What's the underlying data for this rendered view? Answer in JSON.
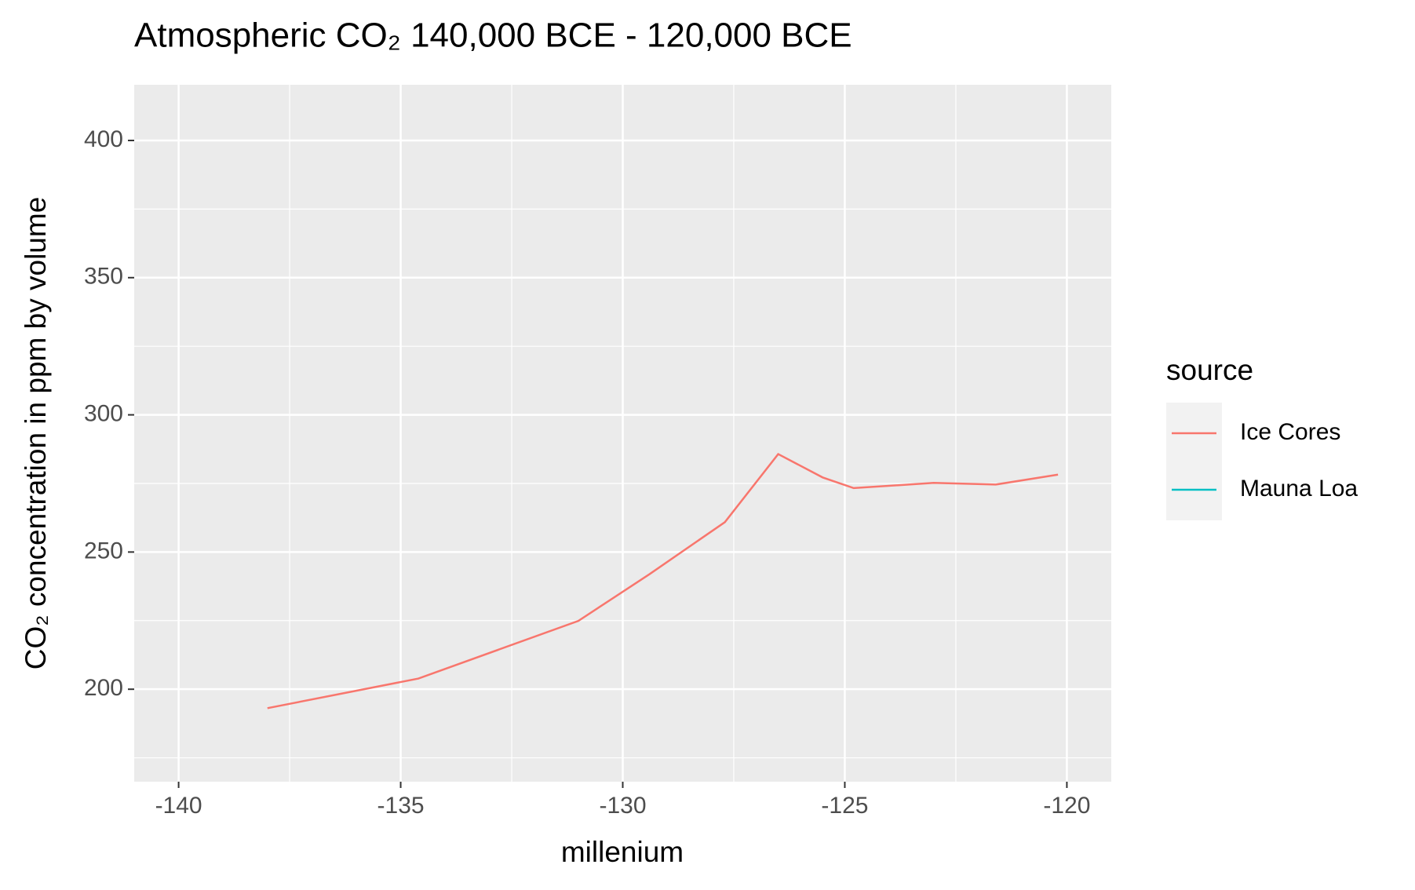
{
  "chart_data": {
    "type": "line",
    "title": "Atmospheric CO₂ 140,000 BCE - 120,000 BCE",
    "x_label": "millenium",
    "y_label": "CO₂ concentration in ppm by volume",
    "legend_title": "source",
    "legend_position": "right",
    "x": [
      -138.0,
      -134.6,
      -131.0,
      -129.4,
      -127.7,
      -126.5,
      -125.5,
      -124.8,
      -123.0,
      -121.6,
      -120.2
    ],
    "series": [
      {
        "name": "Ice Cores",
        "color": "#F8766D",
        "values": [
          193.1,
          203.9,
          224.9,
          241.9,
          260.9,
          285.7,
          277.2,
          273.3,
          275.2,
          274.6,
          278.2
        ]
      },
      {
        "name": "Mauna Loa",
        "color": "#00BFC4",
        "values": [
          null,
          null,
          null,
          null,
          null,
          null,
          null,
          null,
          null,
          null,
          null
        ]
      }
    ],
    "xlim": [
      -141.0,
      -119.0
    ],
    "xticks": [
      -140,
      -135,
      -130,
      -125,
      -120
    ],
    "ylim": [
      166.3,
      420.3
    ],
    "yticks": [
      200,
      250,
      300,
      350,
      400
    ],
    "grid": true,
    "minor_grid": true
  }
}
